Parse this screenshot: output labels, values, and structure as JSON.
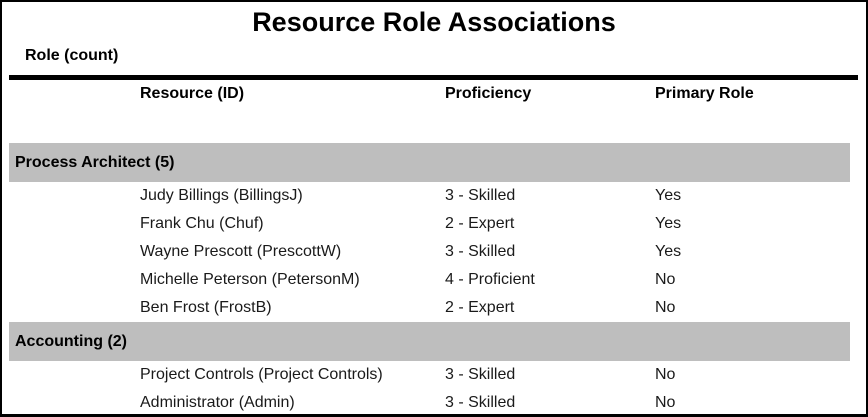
{
  "title": "Resource Role Associations",
  "table": {
    "role_count_label": "Role (count)",
    "columns": [
      "Resource (ID)",
      "Proficiency",
      "Primary Role"
    ],
    "groups": [
      {
        "role": "Process Architect (5)",
        "rows": [
          {
            "resource": "Judy Billings (BillingsJ)",
            "proficiency": "3 - Skilled",
            "primary_role": "Yes"
          },
          {
            "resource": "Frank Chu (Chuf)",
            "proficiency": "2 - Expert",
            "primary_role": "Yes"
          },
          {
            "resource": "Wayne Prescott (PrescottW)",
            "proficiency": "3 - Skilled",
            "primary_role": "Yes"
          },
          {
            "resource": "Michelle Peterson (PetersonM)",
            "proficiency": "4 - Proficient",
            "primary_role": "No"
          },
          {
            "resource": "Ben Frost (FrostB)",
            "proficiency": "2 - Expert",
            "primary_role": "No"
          }
        ]
      },
      {
        "role": "Accounting (2)",
        "rows": [
          {
            "resource": "Project Controls (Project Controls)",
            "proficiency": "3 - Skilled",
            "primary_role": "No"
          },
          {
            "resource": "Administrator (Admin)",
            "proficiency": "3 - Skilled",
            "primary_role": "No"
          }
        ]
      }
    ]
  },
  "colors": {
    "group_band": "#bebebe",
    "rule": "#000000",
    "body_text": "#1a1a1a"
  }
}
